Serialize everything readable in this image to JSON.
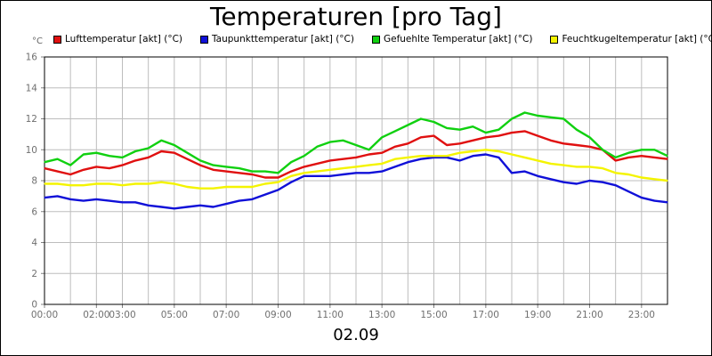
{
  "chart_data": {
    "type": "line",
    "title": "Temperaturen [pro Tag]",
    "subtitle": "02.09",
    "yunit": "°C",
    "ylim": [
      0,
      16
    ],
    "yticks": [
      0,
      2,
      4,
      6,
      8,
      10,
      12,
      14,
      16
    ],
    "xlim": [
      0,
      24
    ],
    "xticks": [
      {
        "x": 0,
        "label": "00:00"
      },
      {
        "x": 2,
        "label": "02:00"
      },
      {
        "x": 3,
        "label": "03:00"
      },
      {
        "x": 5,
        "label": "05:00"
      },
      {
        "x": 7,
        "label": "07:00"
      },
      {
        "x": 9,
        "label": "09:00"
      },
      {
        "x": 11,
        "label": "11:00"
      },
      {
        "x": 13,
        "label": "13:00"
      },
      {
        "x": 15,
        "label": "15:00"
      },
      {
        "x": 17,
        "label": "17:00"
      },
      {
        "x": 19,
        "label": "19:00"
      },
      {
        "x": 21,
        "label": "21:00"
      },
      {
        "x": 23,
        "label": "23:00"
      }
    ],
    "grid": true,
    "legend_position": "top",
    "series": [
      {
        "name": "Lufttemperatur [akt] (°C)",
        "color": "#e01010",
        "x": [
          0,
          0.5,
          1,
          1.5,
          2,
          2.5,
          3,
          3.5,
          4,
          4.5,
          5,
          5.5,
          6,
          6.5,
          7,
          7.5,
          8,
          8.5,
          9,
          9.5,
          10,
          10.5,
          11,
          11.5,
          12,
          12.5,
          13,
          13.5,
          14,
          14.5,
          15,
          15.5,
          16,
          16.5,
          17,
          17.5,
          18,
          18.5,
          19,
          19.5,
          20,
          20.5,
          21,
          21.5,
          22,
          22.5,
          23,
          23.5,
          24
        ],
        "y": [
          8.8,
          8.6,
          8.4,
          8.7,
          8.9,
          8.8,
          9.0,
          9.3,
          9.5,
          9.9,
          9.8,
          9.4,
          9.0,
          8.7,
          8.6,
          8.5,
          8.4,
          8.2,
          8.2,
          8.6,
          8.9,
          9.1,
          9.3,
          9.4,
          9.5,
          9.7,
          9.8,
          10.2,
          10.4,
          10.8,
          10.9,
          10.3,
          10.4,
          10.6,
          10.8,
          10.9,
          11.1,
          11.2,
          10.9,
          10.6,
          10.4,
          10.3,
          10.2,
          10.0,
          9.3,
          9.5,
          9.6,
          9.5,
          9.4
        ]
      },
      {
        "name": "Taupunkttemperatur [akt] (°C)",
        "color": "#1010d8",
        "x": [
          0,
          0.5,
          1,
          1.5,
          2,
          2.5,
          3,
          3.5,
          4,
          4.5,
          5,
          5.5,
          6,
          6.5,
          7,
          7.5,
          8,
          8.5,
          9,
          9.5,
          10,
          10.5,
          11,
          11.5,
          12,
          12.5,
          13,
          13.5,
          14,
          14.5,
          15,
          15.5,
          16,
          16.5,
          17,
          17.5,
          18,
          18.5,
          19,
          19.5,
          20,
          20.5,
          21,
          21.5,
          22,
          22.5,
          23,
          23.5,
          24
        ],
        "y": [
          6.9,
          7.0,
          6.8,
          6.7,
          6.8,
          6.7,
          6.6,
          6.6,
          6.4,
          6.3,
          6.2,
          6.3,
          6.4,
          6.3,
          6.5,
          6.7,
          6.8,
          7.1,
          7.4,
          7.9,
          8.3,
          8.3,
          8.3,
          8.4,
          8.5,
          8.5,
          8.6,
          8.9,
          9.2,
          9.4,
          9.5,
          9.5,
          9.3,
          9.6,
          9.7,
          9.5,
          8.5,
          8.6,
          8.3,
          8.1,
          7.9,
          7.8,
          8.0,
          7.9,
          7.7,
          7.3,
          6.9,
          6.7,
          6.6
        ]
      },
      {
        "name": "Gefuehlte Temperatur [akt] (°C)",
        "color": "#10d010",
        "x": [
          0,
          0.5,
          1,
          1.5,
          2,
          2.5,
          3,
          3.5,
          4,
          4.5,
          5,
          5.5,
          6,
          6.5,
          7,
          7.5,
          8,
          8.5,
          9,
          9.5,
          10,
          10.5,
          11,
          11.5,
          12,
          12.5,
          13,
          13.5,
          14,
          14.5,
          15,
          15.5,
          16,
          16.5,
          17,
          17.5,
          18,
          18.5,
          19,
          19.5,
          20,
          20.5,
          21,
          21.5,
          22,
          22.5,
          23,
          23.5,
          24
        ],
        "y": [
          9.2,
          9.4,
          9.0,
          9.7,
          9.8,
          9.6,
          9.5,
          9.9,
          10.1,
          10.6,
          10.3,
          9.8,
          9.3,
          9.0,
          8.9,
          8.8,
          8.6,
          8.6,
          8.5,
          9.2,
          9.6,
          10.2,
          10.5,
          10.6,
          10.3,
          10.0,
          10.8,
          11.2,
          11.6,
          12.0,
          11.8,
          11.4,
          11.3,
          11.5,
          11.1,
          11.3,
          12.0,
          12.4,
          12.2,
          12.1,
          12.0,
          11.3,
          10.8,
          10.0,
          9.5,
          9.8,
          10.0,
          10.0,
          9.6
        ]
      },
      {
        "name": "Feuchtkugeltemperatur [akt] (°C)",
        "color": "#f4f400",
        "x": [
          0,
          0.5,
          1,
          1.5,
          2,
          2.5,
          3,
          3.5,
          4,
          4.5,
          5,
          5.5,
          6,
          6.5,
          7,
          7.5,
          8,
          8.5,
          9,
          9.5,
          10,
          10.5,
          11,
          11.5,
          12,
          12.5,
          13,
          13.5,
          14,
          14.5,
          15,
          15.5,
          16,
          16.5,
          17,
          17.5,
          18,
          18.5,
          19,
          19.5,
          20,
          20.5,
          21,
          21.5,
          22,
          22.5,
          23,
          23.5,
          24
        ],
        "y": [
          7.8,
          7.8,
          7.7,
          7.7,
          7.8,
          7.8,
          7.7,
          7.8,
          7.8,
          7.9,
          7.8,
          7.6,
          7.5,
          7.5,
          7.6,
          7.6,
          7.6,
          7.8,
          7.9,
          8.3,
          8.5,
          8.6,
          8.7,
          8.8,
          8.9,
          9.0,
          9.1,
          9.4,
          9.5,
          9.6,
          9.6,
          9.6,
          9.8,
          9.9,
          10.0,
          9.9,
          9.7,
          9.5,
          9.3,
          9.1,
          9.0,
          8.9,
          8.9,
          8.8,
          8.5,
          8.4,
          8.2,
          8.1,
          8.0
        ]
      }
    ]
  }
}
